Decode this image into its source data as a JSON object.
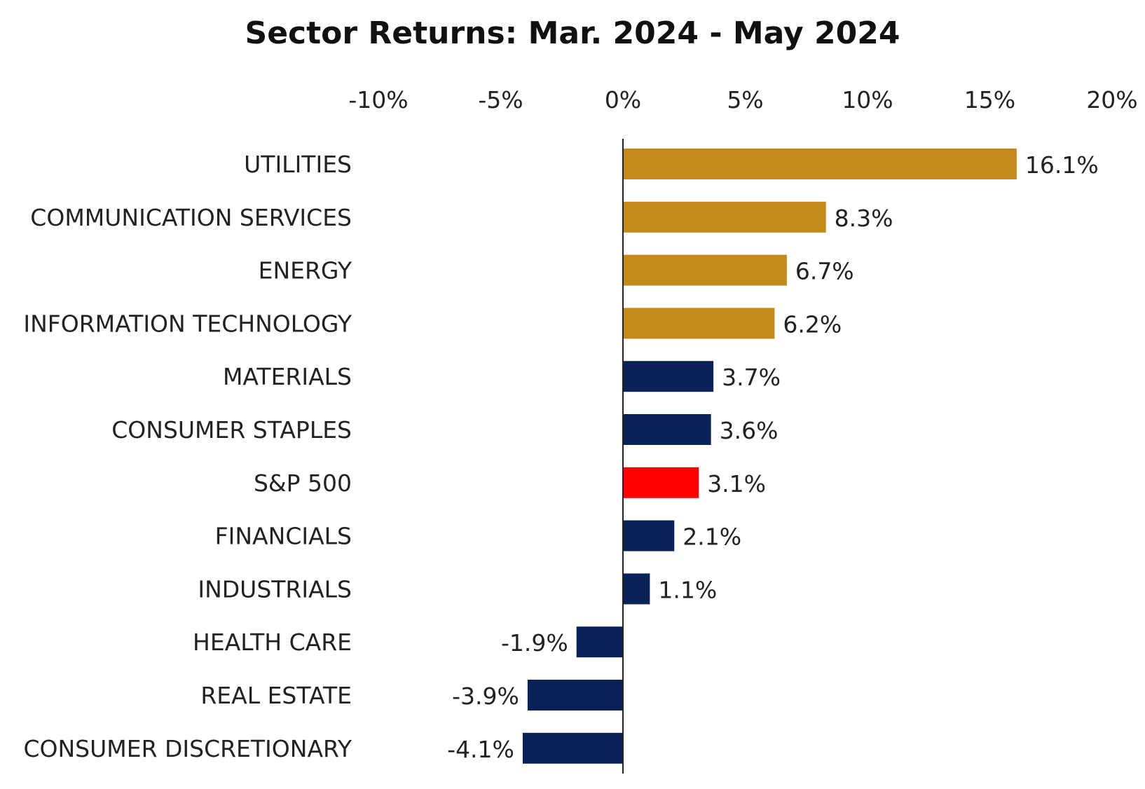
{
  "chart_data": {
    "type": "bar",
    "orientation": "horizontal",
    "title": "Sector Returns: Mar. 2024 - May 2024",
    "xlabel": "",
    "ylabel": "",
    "xlim": [
      -10,
      20
    ],
    "x_ticks": [
      -10,
      -5,
      0,
      5,
      10,
      15,
      20
    ],
    "x_tick_labels": [
      "-10%",
      "-5%",
      "0%",
      "5%",
      "10%",
      "15%",
      "20%"
    ],
    "x_axis_position": "top",
    "grid": false,
    "legend": "none",
    "categories": [
      "UTILITIES",
      "COMMUNICATION SERVICES",
      "ENERGY",
      "INFORMATION TECHNOLOGY",
      "MATERIALS",
      "CONSUMER STAPLES",
      "S&P 500",
      "FINANCIALS",
      "INDUSTRIALS",
      "HEALTH CARE",
      "REAL ESTATE",
      "CONSUMER DISCRETIONARY"
    ],
    "values": [
      16.1,
      8.3,
      6.7,
      6.2,
      3.7,
      3.6,
      3.1,
      2.1,
      1.1,
      -1.9,
      -3.9,
      -4.1
    ],
    "data_labels": [
      "16.1%",
      "8.3%",
      "6.7%",
      "6.2%",
      "3.7%",
      "3.6%",
      "3.1%",
      "2.1%",
      "1.1%",
      "-1.9%",
      "-3.9%",
      "-4.1%"
    ],
    "bar_colors": [
      "#C4891A",
      "#C4891A",
      "#C4891A",
      "#C4891A",
      "#0B2258",
      "#0B2258",
      "#FF0000",
      "#0B2258",
      "#0B2258",
      "#0B2258",
      "#0B2258",
      "#0B2258"
    ]
  },
  "colors": {
    "gold": "#C4891A",
    "navy": "#0B2258",
    "highlight": "#FF0000",
    "axis": "#222222"
  }
}
